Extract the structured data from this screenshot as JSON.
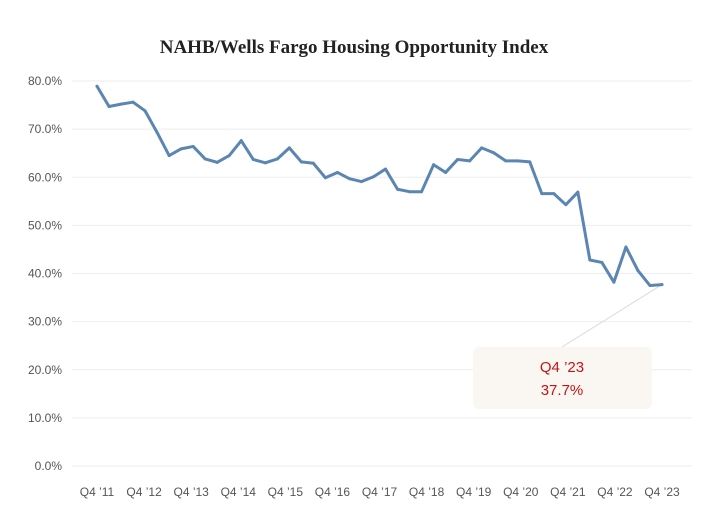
{
  "chart_data": {
    "type": "line",
    "title": "NAHB/Wells Fargo Housing Opportunity Index",
    "xlabel": "",
    "ylabel": "",
    "ylim": [
      0,
      80
    ],
    "grid": true,
    "legend": "none",
    "y_ticks": [
      "0.0%",
      "10.0%",
      "20.0%",
      "30.0%",
      "40.0%",
      "50.0%",
      "60.0%",
      "70.0%",
      "80.0%"
    ],
    "x_ticks": [
      "Q4 ’11",
      "Q4 ’12",
      "Q4 ’13",
      "Q4 ’14",
      "Q4 ’15",
      "Q4 ’16",
      "Q4 ’17",
      "Q4 ’18",
      "Q4 ’19",
      "Q4 ’20",
      "Q4 ’21",
      "Q4 ’22",
      "Q4 ’23"
    ],
    "series": [
      {
        "color": "#5b86b3",
        "values": [
          78.9,
          74.7,
          75.2,
          75.6,
          73.8,
          69.3,
          64.5,
          65.9,
          66.4,
          63.8,
          63.1,
          64.5,
          67.6,
          63.7,
          63.0,
          63.8,
          66.1,
          63.2,
          62.9,
          59.9,
          61.0,
          59.7,
          59.1,
          60.1,
          61.7,
          57.5,
          57.0,
          57.0,
          62.6,
          61.0,
          63.7,
          63.4,
          66.1,
          65.1,
          63.4,
          63.4,
          63.2,
          56.6,
          56.6,
          54.3,
          56.9,
          42.8,
          42.3,
          38.2,
          45.5,
          40.6,
          37.5,
          37.7
        ]
      }
    ],
    "annotation": {
      "label": "Q4 ’23",
      "value": "37.7%"
    }
  },
  "colors": {
    "series": "#5b86b3",
    "annotation_text": "#c0161a",
    "annotation_box": "#faf6f1"
  }
}
